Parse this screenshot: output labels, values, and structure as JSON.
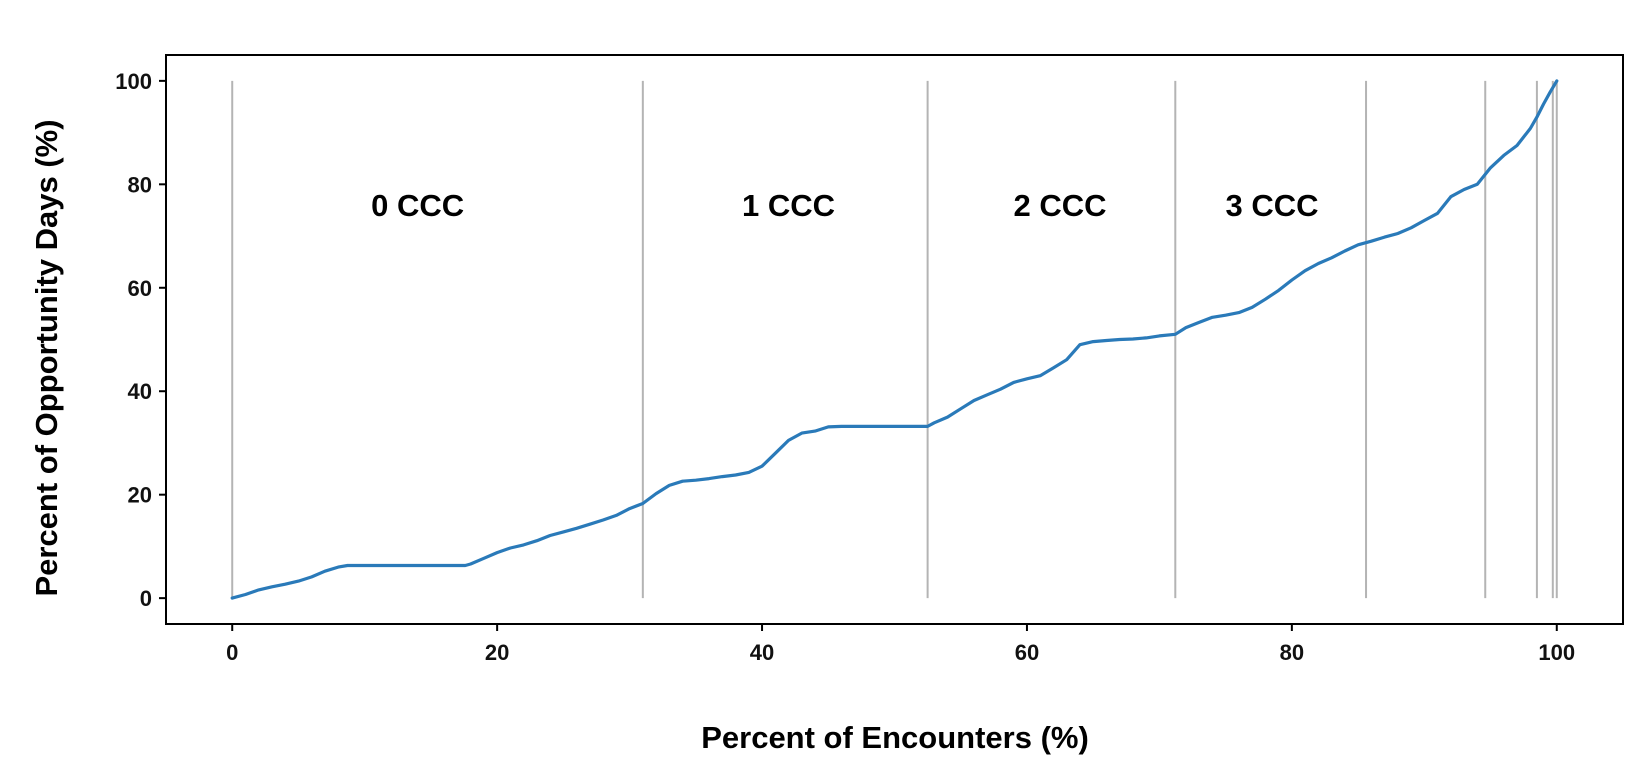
{
  "chart_data": {
    "type": "line",
    "xlabel": "Percent of Encounters (%)",
    "ylabel": "Percent of Opportunity Days (%)",
    "xlim": [
      -5,
      105
    ],
    "ylim": [
      -5,
      105
    ],
    "xticks": [
      0,
      20,
      40,
      60,
      80,
      100
    ],
    "yticks": [
      0,
      20,
      40,
      60,
      80,
      100
    ],
    "grid": false,
    "line_color": "#2a7ab9",
    "boundary_color": "#b4b4b4",
    "boundaries": [
      0,
      31,
      52.5,
      71.2,
      85.6,
      94.6,
      98.5,
      99.7,
      100
    ],
    "region_labels": [
      {
        "text": "0 CCC",
        "x": 14,
        "y": 76
      },
      {
        "text": "1 CCC",
        "x": 42,
        "y": 76
      },
      {
        "text": "2 CCC",
        "x": 62.5,
        "y": 76
      },
      {
        "text": "3 CCC",
        "x": 78.5,
        "y": 76
      }
    ],
    "series": [
      {
        "x": [
          0,
          1,
          2,
          3,
          4,
          5,
          6,
          7,
          8,
          8.7,
          10,
          12,
          14,
          16,
          17.6,
          18,
          19,
          20,
          21,
          22,
          23,
          24,
          25,
          26,
          27,
          28,
          29,
          30,
          31,
          32,
          33,
          34,
          35,
          36,
          37,
          38,
          39,
          40,
          41,
          42,
          43,
          44,
          45,
          46,
          48,
          50,
          52.5,
          53,
          54,
          55,
          56,
          57,
          58,
          59,
          60,
          61,
          62,
          63,
          64,
          65,
          66,
          67,
          68,
          69,
          70,
          71.2,
          72,
          73,
          74,
          75,
          76,
          77,
          78,
          79,
          80,
          81,
          82,
          83,
          84,
          85,
          86,
          87,
          88,
          89,
          90,
          91,
          92,
          93,
          94,
          95,
          96,
          97,
          98,
          98.5,
          99,
          99.5,
          100
        ],
        "y": [
          0,
          0.7,
          1.6,
          2.2,
          2.7,
          3.3,
          4.1,
          5.2,
          6.0,
          6.3,
          6.3,
          6.3,
          6.3,
          6.3,
          6.3,
          6.6,
          7.7,
          8.8,
          9.7,
          10.3,
          11.1,
          12.1,
          12.8,
          13.5,
          14.3,
          15.1,
          16.0,
          17.3,
          18.3,
          20.2,
          21.8,
          22.6,
          22.8,
          23.1,
          23.5,
          23.8,
          24.3,
          25.5,
          28.0,
          30.5,
          31.9,
          32.3,
          33.1,
          33.2,
          33.2,
          33.2,
          33.2,
          33.9,
          35.0,
          36.6,
          38.2,
          39.3,
          40.4,
          41.7,
          42.4,
          43.0,
          44.5,
          46.1,
          49.0,
          49.6,
          49.8,
          50.0,
          50.1,
          50.3,
          50.7,
          51.0,
          52.3,
          53.3,
          54.3,
          54.7,
          55.2,
          56.2,
          57.8,
          59.5,
          61.5,
          63.3,
          64.7,
          65.8,
          67.1,
          68.3,
          69.0,
          69.8,
          70.5,
          71.6,
          73.0,
          74.4,
          77.6,
          79.0,
          80.0,
          83.2,
          85.6,
          87.5,
          90.8,
          93.0,
          95.5,
          97.8,
          100.0
        ]
      }
    ]
  }
}
